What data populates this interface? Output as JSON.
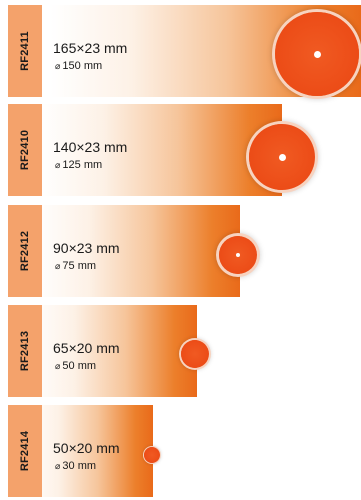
{
  "items": [
    {
      "code": "RF2411",
      "size": "165×23 mm",
      "diameter_symbol": "⌀",
      "diameter": "150 mm"
    },
    {
      "code": "RF2410",
      "size": "140×23 mm",
      "diameter_symbol": "⌀",
      "diameter": "125 mm"
    },
    {
      "code": "RF2412",
      "size": "90×23 mm",
      "diameter_symbol": "⌀",
      "diameter": "75 mm"
    },
    {
      "code": "RF2413",
      "size": "65×20 mm",
      "diameter_symbol": "⌀",
      "diameter": "50 mm"
    },
    {
      "code": "RF2414",
      "size": "50×20 mm",
      "diameter_symbol": "⌀",
      "diameter": "30 mm"
    }
  ],
  "colors": {
    "tab": "#f4a26b",
    "disc": "#ec4c17",
    "gradient_end": "#e96a1a"
  }
}
